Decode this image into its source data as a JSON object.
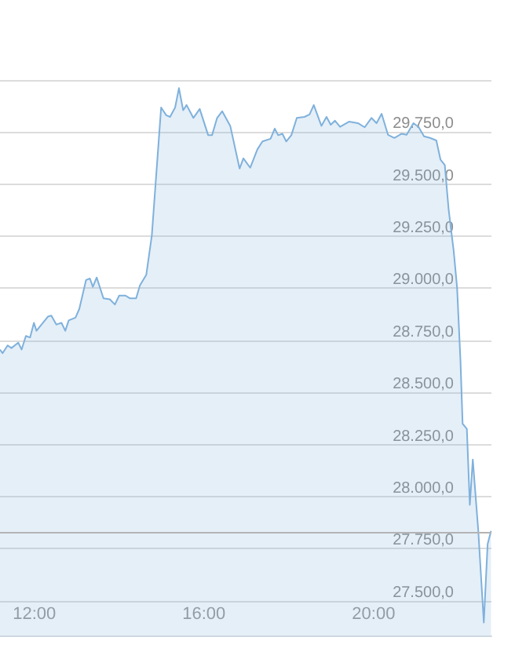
{
  "chart_data": {
    "type": "area",
    "color": "#7fb1dc",
    "x": [
      11.19,
      11.25,
      11.37,
      11.46,
      11.62,
      11.7,
      11.8,
      11.9,
      11.99,
      12.05,
      12.17,
      12.32,
      12.4,
      12.52,
      12.64,
      12.73,
      12.81,
      12.97,
      13.06,
      13.22,
      13.31,
      13.38,
      13.47,
      13.63,
      13.78,
      13.9,
      14.0,
      14.15,
      14.25,
      14.4,
      14.49,
      14.64,
      14.77,
      14.86,
      14.99,
      15.11,
      15.2,
      15.32,
      15.41,
      15.51,
      15.59,
      15.75,
      15.9,
      16.1,
      16.19,
      16.31,
      16.43,
      16.62,
      16.84,
      16.93,
      17.09,
      17.26,
      17.38,
      17.57,
      17.67,
      17.75,
      17.85,
      17.94,
      18.06,
      18.19,
      18.37,
      18.49,
      18.59,
      18.77,
      18.89,
      18.99,
      19.09,
      19.21,
      19.42,
      19.63,
      19.79,
      19.95,
      20.07,
      20.19,
      20.34,
      20.49,
      20.66,
      20.78,
      20.94,
      21.06,
      21.19,
      21.33,
      21.48,
      21.58,
      21.68,
      21.77,
      21.89,
      21.97,
      22.05,
      22.1,
      22.2,
      22.27,
      22.34,
      22.47,
      22.6,
      22.69,
      22.77
    ],
    "values": [
      28706,
      28688,
      28726,
      28713,
      28739,
      28706,
      28771,
      28764,
      28834,
      28796,
      28826,
      28864,
      28869,
      28826,
      28834,
      28796,
      28846,
      28859,
      28901,
      29040,
      29047,
      29007,
      29052,
      28952,
      28947,
      28922,
      28965,
      28965,
      28952,
      28952,
      29014,
      29065,
      29253,
      29504,
      29868,
      29831,
      29823,
      29868,
      29961,
      29855,
      29880,
      29818,
      29861,
      29735,
      29735,
      29818,
      29850,
      29780,
      29575,
      29624,
      29579,
      29667,
      29705,
      29718,
      29767,
      29735,
      29742,
      29705,
      29735,
      29818,
      29823,
      29835,
      29880,
      29780,
      29823,
      29785,
      29805,
      29775,
      29800,
      29793,
      29773,
      29818,
      29793,
      29838,
      29737,
      29722,
      29742,
      29737,
      29793,
      29775,
      29730,
      29722,
      29710,
      29617,
      29592,
      29379,
      29178,
      29002,
      28651,
      28350,
      28325,
      27960,
      28178,
      27835,
      27395,
      27772,
      27835
    ],
    "xlim": [
      11.19,
      22.78
    ],
    "xticks": [
      {
        "value": 12,
        "label": "12:00"
      },
      {
        "value": 16,
        "label": "16:00"
      },
      {
        "value": 20,
        "label": "20:00"
      }
    ],
    "ylim": [
      27333,
      30000
    ],
    "yticks": [
      {
        "value": 27500,
        "label": "27.500,0"
      },
      {
        "value": 27750,
        "label": "27.750,0"
      },
      {
        "value": 28000,
        "label": "28.000,0"
      },
      {
        "value": 28250,
        "label": "28.250,0"
      },
      {
        "value": 28500,
        "label": "28.500,0"
      },
      {
        "value": 28750,
        "label": "28.750,0"
      },
      {
        "value": 29000,
        "label": "29.000,0"
      },
      {
        "value": 29250,
        "label": "29.250,0"
      },
      {
        "value": 29500,
        "label": "29.500,0"
      },
      {
        "value": 29750,
        "label": "29.750,0"
      },
      {
        "value": 30000,
        "label": null
      }
    ],
    "grid": "y",
    "marker": "none",
    "line_style": "solid",
    "ref_lines": [
      {
        "axis": "y",
        "value": 27830,
        "color": "#b4b4b4",
        "line_style": "solid"
      }
    ]
  }
}
